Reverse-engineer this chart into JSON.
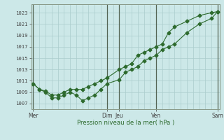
{
  "title": "",
  "xlabel": "Pression niveau de la mer( hPa )",
  "background_color": "#cce8e8",
  "grid_color": "#aacccc",
  "line_color": "#2d6a2d",
  "yticks": [
    1007,
    1009,
    1011,
    1013,
    1015,
    1017,
    1019,
    1021,
    1023
  ],
  "ylim": [
    1006.0,
    1024.5
  ],
  "xlim": [
    -0.3,
    30.3
  ],
  "xtick_labels": [
    "Mer",
    "",
    "Dim",
    "Jeu",
    "",
    "Ven",
    "",
    "Sam"
  ],
  "xtick_positions": [
    0,
    6,
    12,
    14,
    18,
    20,
    25,
    30
  ],
  "vline_positions": [
    0,
    12,
    14,
    20,
    30
  ],
  "vline_color": "#556655",
  "series1_x": [
    0,
    1,
    2,
    3,
    4,
    5,
    6,
    7,
    8,
    9,
    10,
    11,
    12,
    14,
    15,
    16,
    17,
    18,
    19,
    20,
    21,
    22,
    23,
    25,
    27,
    29,
    30
  ],
  "series1_y": [
    1010.5,
    1009.5,
    1009.0,
    1008.0,
    1008.0,
    1008.5,
    1009.0,
    1008.5,
    1007.5,
    1008.0,
    1008.5,
    1009.5,
    1010.5,
    1011.2,
    1012.5,
    1013.0,
    1013.5,
    1014.5,
    1015.0,
    1015.5,
    1016.5,
    1017.0,
    1017.5,
    1019.5,
    1021.0,
    1022.0,
    1023.2
  ],
  "series2_x": [
    0,
    1,
    2,
    3,
    4,
    5,
    6,
    7,
    8,
    9,
    10,
    11,
    12,
    14,
    15,
    16,
    17,
    18,
    19,
    20,
    21,
    22,
    23,
    25,
    27,
    29,
    30
  ],
  "series2_y": [
    1010.5,
    1009.5,
    1009.2,
    1008.5,
    1008.5,
    1009.0,
    1009.5,
    1009.5,
    1009.5,
    1010.0,
    1010.5,
    1011.0,
    1011.5,
    1013.0,
    1013.5,
    1014.0,
    1015.5,
    1016.0,
    1016.5,
    1017.0,
    1017.5,
    1019.5,
    1020.5,
    1021.5,
    1022.5,
    1023.0,
    1023.2
  ]
}
